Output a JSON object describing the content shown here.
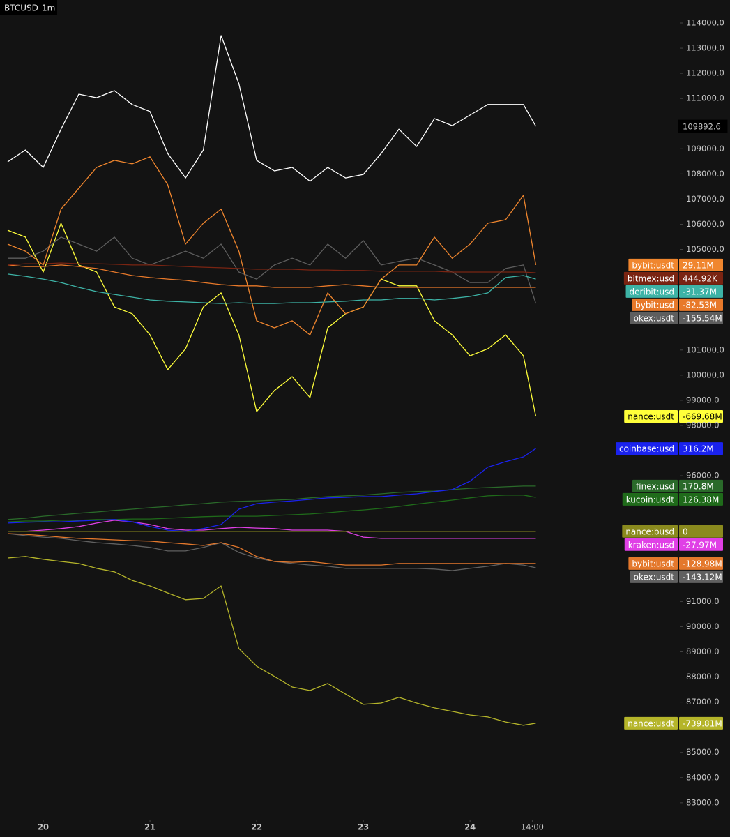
{
  "chart_data": {
    "type": "line",
    "title": "BTCUSD",
    "interval": "1m",
    "grid": false,
    "x": [
      -8,
      -4,
      0,
      4,
      8,
      12,
      16,
      20,
      24,
      28,
      32,
      36,
      40,
      44,
      48,
      52,
      56,
      60,
      64,
      68,
      72,
      76,
      80,
      84,
      88,
      92,
      96,
      100,
      104,
      108,
      110.8
    ],
    "xlim": [
      -9.73,
      142.4
    ],
    "xticks": [
      {
        "value": 0,
        "label": "20"
      },
      {
        "value": 24,
        "label": "21"
      },
      {
        "value": 48,
        "label": "22"
      },
      {
        "value": 72,
        "label": "23"
      },
      {
        "value": 96,
        "label": "24"
      },
      {
        "value": 110,
        "label": "14:00"
      }
    ],
    "ylim": [
      82330,
      114915
    ],
    "yticks": [
      {
        "value": 114000,
        "label": "114000.0"
      },
      {
        "value": 113000,
        "label": "113000.0"
      },
      {
        "value": 112000,
        "label": "112000.0"
      },
      {
        "value": 111000,
        "label": "111000.0"
      },
      {
        "value": 109000,
        "label": "109000.0"
      },
      {
        "value": 108000,
        "label": "108000.0"
      },
      {
        "value": 107000,
        "label": "107000.0"
      },
      {
        "value": 106000,
        "label": "106000.0"
      },
      {
        "value": 105000,
        "label": "105000.0"
      },
      {
        "value": 101000,
        "label": "101000.0"
      },
      {
        "value": 100000,
        "label": "100000.0"
      },
      {
        "value": 99000,
        "label": "99000.0"
      },
      {
        "value": 98000,
        "label": "98000.0"
      },
      {
        "value": 96000,
        "label": "96000.0"
      },
      {
        "value": 91000,
        "label": "91000.0"
      },
      {
        "value": 90000,
        "label": "90000.0"
      },
      {
        "value": 89000,
        "label": "89000.0"
      },
      {
        "value": 88000,
        "label": "88000.0"
      },
      {
        "value": 87000,
        "label": "87000.0"
      },
      {
        "value": 85000,
        "label": "85000.0"
      },
      {
        "value": 84000,
        "label": "84000.0"
      },
      {
        "value": 83000,
        "label": "83000.0"
      }
    ],
    "series": [
      {
        "color": "#ffffff",
        "values": [
          108480,
          108950,
          108260,
          109780,
          111170,
          111030,
          111310,
          110760,
          110480,
          108810,
          107840,
          108950,
          113500,
          111590,
          108540,
          108120,
          108260,
          107710,
          108260,
          107840,
          107980,
          108810,
          109780,
          109090,
          110200,
          109920,
          110340,
          110760,
          110760,
          110760,
          109892.6
        ]
      },
      {
        "name": "bybit:usdt",
        "last_label": "29.11M",
        "color": "#f0862e",
        "values": [
          105210,
          104930,
          104380,
          106600,
          107430,
          108260,
          108540,
          108400,
          108680,
          107570,
          105210,
          106040,
          106600,
          104930,
          102160,
          101880,
          102160,
          101600,
          103270,
          102440,
          102710,
          103820,
          104380,
          104380,
          105490,
          104650,
          105210,
          106040,
          106180,
          107150,
          104380
        ]
      },
      {
        "name": "bitmex:usd",
        "last_label": "444.92K",
        "color": "#7a2412",
        "values": [
          104380,
          104430,
          104430,
          104460,
          104430,
          104430,
          104410,
          104380,
          104380,
          104350,
          104320,
          104290,
          104270,
          104240,
          104210,
          104210,
          104210,
          104180,
          104180,
          104160,
          104160,
          104130,
          104130,
          104130,
          104130,
          104100,
          104100,
          104100,
          104100,
          104100,
          104070
        ]
      },
      {
        "name": "deribit:usd",
        "last_label": "-31.37M",
        "color": "#3db3a6",
        "values": [
          104020,
          103930,
          103820,
          103680,
          103490,
          103320,
          103210,
          103100,
          102990,
          102940,
          102910,
          102880,
          102850,
          102880,
          102850,
          102850,
          102880,
          102880,
          102910,
          102940,
          102990,
          102990,
          103050,
          103050,
          102990,
          103050,
          103130,
          103270,
          103880,
          103960,
          103820
        ]
      },
      {
        "name": "bybit:usd",
        "last_label": "-82.53M",
        "color": "#e8792a",
        "values": [
          104380,
          104320,
          104320,
          104380,
          104320,
          104240,
          104100,
          103960,
          103880,
          103820,
          103770,
          103680,
          103600,
          103550,
          103550,
          103490,
          103490,
          103490,
          103550,
          103600,
          103550,
          103490,
          103490,
          103490,
          103490,
          103490,
          103490,
          103490,
          103490,
          103490,
          103490
        ]
      },
      {
        "name": "okex:usdt",
        "last_label": "-155.54M",
        "color": "#5e5e5e",
        "values": [
          104650,
          104650,
          104930,
          105490,
          105210,
          104930,
          105490,
          104650,
          104380,
          104650,
          104930,
          104650,
          105210,
          104100,
          103820,
          104380,
          104650,
          104380,
          105210,
          104650,
          105350,
          104380,
          104520,
          104650,
          104380,
          104100,
          103680,
          103680,
          104240,
          104380,
          102850
        ]
      },
      {
        "name": "nance:usdt",
        "last_label": "-669.68M",
        "color": "#ffff3a",
        "values": [
          105760,
          105490,
          104100,
          106040,
          104380,
          104100,
          102710,
          102440,
          101600,
          100220,
          101050,
          102710,
          103270,
          101600,
          98550,
          99390,
          99940,
          99110,
          101880,
          102440,
          102710,
          103820,
          103550,
          103550,
          102160,
          101600,
          100770,
          101050,
          101600,
          100770,
          98360
        ]
      },
      {
        "name": "coinbase:usd",
        "last_label": "316.2M",
        "color": "#1a22ee",
        "values": [
          94120,
          94150,
          94170,
          94170,
          94200,
          94230,
          94260,
          94170,
          93980,
          93840,
          93790,
          93900,
          94060,
          94670,
          94890,
          94950,
          95000,
          95060,
          95120,
          95140,
          95170,
          95170,
          95230,
          95280,
          95370,
          95450,
          95780,
          96340,
          96560,
          96750,
          97080
        ]
      },
      {
        "name": "finex:usd",
        "last_label": "170.8M",
        "color": "#2a6a2a",
        "values": [
          94260,
          94310,
          94390,
          94450,
          94510,
          94560,
          94620,
          94670,
          94730,
          94780,
          94840,
          94890,
          94950,
          94980,
          95000,
          95030,
          95060,
          95120,
          95170,
          95200,
          95230,
          95280,
          95340,
          95370,
          95390,
          95450,
          95500,
          95530,
          95560,
          95590,
          95590
        ]
      },
      {
        "name": "kucoin:usdt",
        "last_label": "126.38M",
        "color": "#1f6b1a",
        "values": [
          94170,
          94200,
          94200,
          94230,
          94230,
          94260,
          94260,
          94280,
          94280,
          94310,
          94340,
          94370,
          94390,
          94390,
          94390,
          94420,
          94450,
          94480,
          94530,
          94590,
          94640,
          94700,
          94780,
          94870,
          94950,
          95030,
          95120,
          95200,
          95230,
          95230,
          95140
        ]
      },
      {
        "name": "nance:busd",
        "last_label": "0",
        "color": "#8a8a1e",
        "values": [
          93790,
          93790,
          93790,
          93790,
          93790,
          93790,
          93790,
          93790,
          93790,
          93790,
          93790,
          93790,
          93790,
          93790,
          93790,
          93790,
          93790,
          93790,
          93790,
          93790,
          93790,
          93790,
          93790,
          93790,
          93790,
          93790,
          93790,
          93790,
          93790,
          93790,
          93790
        ]
      },
      {
        "name": "kraken:usd",
        "last_label": "-27.97M",
        "color": "#e040e6",
        "values": [
          93790,
          93790,
          93840,
          93900,
          93980,
          94120,
          94230,
          94170,
          94060,
          93900,
          93840,
          93840,
          93900,
          93950,
          93920,
          93900,
          93840,
          93840,
          93840,
          93790,
          93560,
          93510,
          93510,
          93510,
          93510,
          93510,
          93510,
          93510,
          93510,
          93510,
          93510
        ]
      },
      {
        "name": "bybit:usdt",
        "last_label": "-128.98M",
        "color": "#e4782c",
        "values": [
          93700,
          93670,
          93620,
          93560,
          93510,
          93480,
          93450,
          93420,
          93400,
          93340,
          93290,
          93230,
          93340,
          93150,
          92790,
          92590,
          92560,
          92590,
          92510,
          92450,
          92450,
          92450,
          92510,
          92510,
          92510,
          92510,
          92510,
          92510,
          92510,
          92510,
          92510
        ]
      },
      {
        "name": "okex:usdt",
        "last_label": "-143.12M",
        "color": "#606060",
        "values": [
          93700,
          93620,
          93560,
          93510,
          93420,
          93340,
          93290,
          93230,
          93150,
          93010,
          93010,
          93150,
          93340,
          92950,
          92730,
          92590,
          92510,
          92450,
          92400,
          92320,
          92320,
          92320,
          92320,
          92320,
          92290,
          92230,
          92320,
          92400,
          92510,
          92450,
          92340
        ]
      },
      {
        "name": "nance:usdt",
        "last_label": "-739.81M",
        "color": "#b5b52a",
        "values": [
          92730,
          92790,
          92680,
          92590,
          92510,
          92320,
          92180,
          91840,
          91620,
          91340,
          91070,
          91120,
          91620,
          89130,
          88430,
          88020,
          87600,
          87460,
          87740,
          87320,
          86910,
          86960,
          87190,
          86960,
          86770,
          86630,
          86490,
          86410,
          86210,
          86080,
          86160
        ]
      }
    ]
  }
}
